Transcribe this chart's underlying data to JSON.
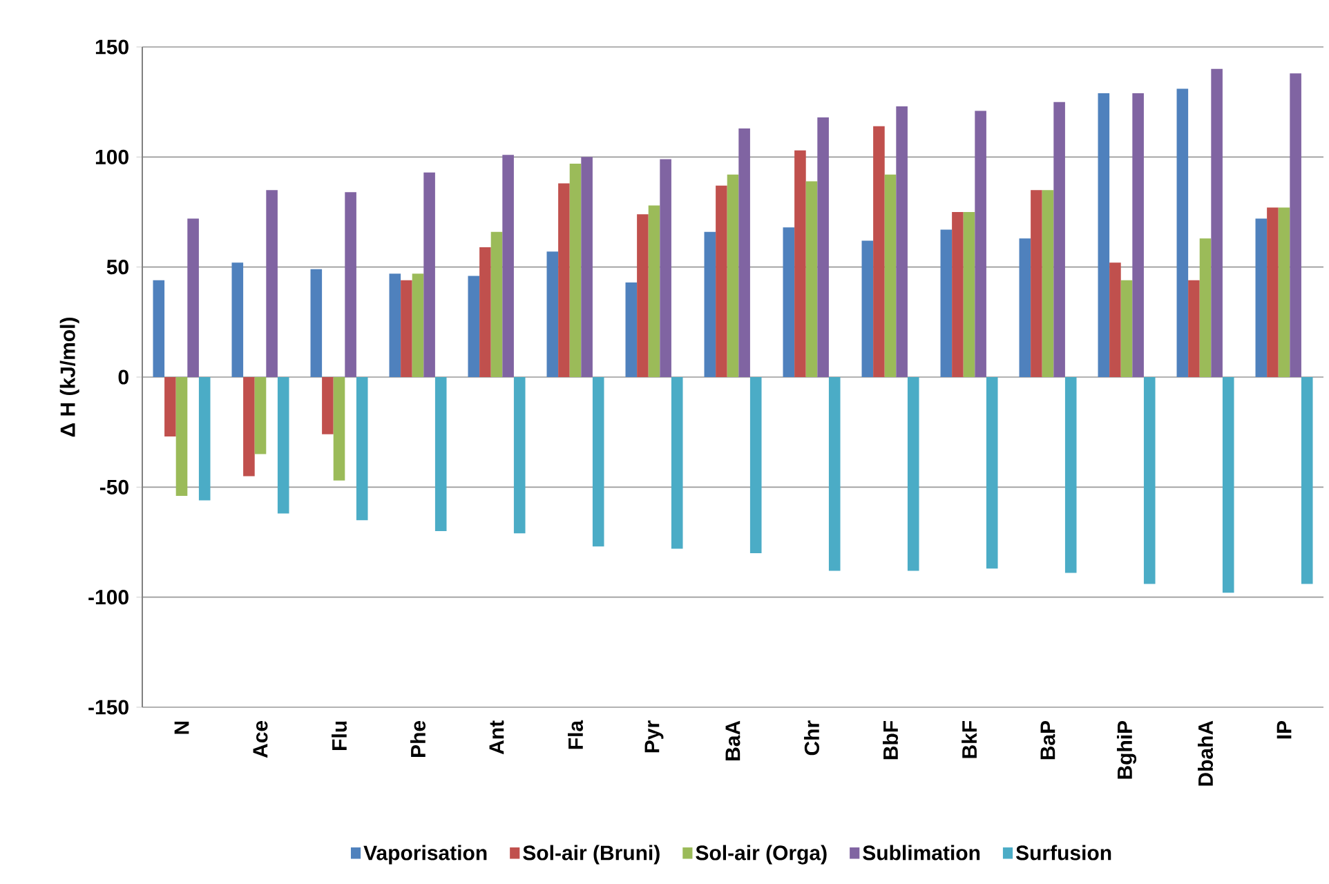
{
  "chart_data": {
    "type": "bar",
    "ylabel": "Δ H (kJ/mol)",
    "categories": [
      "N",
      "Ace",
      "Flu",
      "Phe",
      "Ant",
      "Fla",
      "Pyr",
      "BaA",
      "Chr",
      "BbF",
      "BkF",
      "BaP",
      "BghiP",
      "DbahA",
      "IP"
    ],
    "series": [
      {
        "name": "Vaporisation",
        "color": "#4f81bd",
        "values": [
          44,
          52,
          49,
          47,
          46,
          57,
          43,
          66,
          68,
          62,
          67,
          63,
          129,
          131,
          72
        ]
      },
      {
        "name": "Sol-air (Bruni)",
        "color": "#c0504d",
        "values": [
          -27,
          -45,
          -26,
          44,
          59,
          88,
          74,
          87,
          103,
          114,
          75,
          85,
          52,
          44,
          77
        ]
      },
      {
        "name": "Sol-air (Orga)",
        "color": "#9bbb59",
        "values": [
          -54,
          -35,
          -47,
          47,
          66,
          97,
          78,
          92,
          89,
          92,
          75,
          85,
          44,
          63,
          77
        ]
      },
      {
        "name": "Sublimation",
        "color": "#8064a2",
        "values": [
          72,
          85,
          84,
          93,
          101,
          100,
          99,
          113,
          118,
          123,
          121,
          125,
          129,
          140,
          138
        ]
      },
      {
        "name": "Surfusion",
        "color": "#4bacc6",
        "values": [
          -56,
          -62,
          -65,
          -70,
          -71,
          -77,
          -78,
          -80,
          -88,
          -88,
          -87,
          -89,
          -94,
          -98,
          -94
        ]
      }
    ],
    "ylim": [
      -150,
      150
    ],
    "yticks": [
      -150,
      -100,
      -50,
      0,
      50,
      100,
      150
    ],
    "grid": "y",
    "legend": "bottom"
  }
}
